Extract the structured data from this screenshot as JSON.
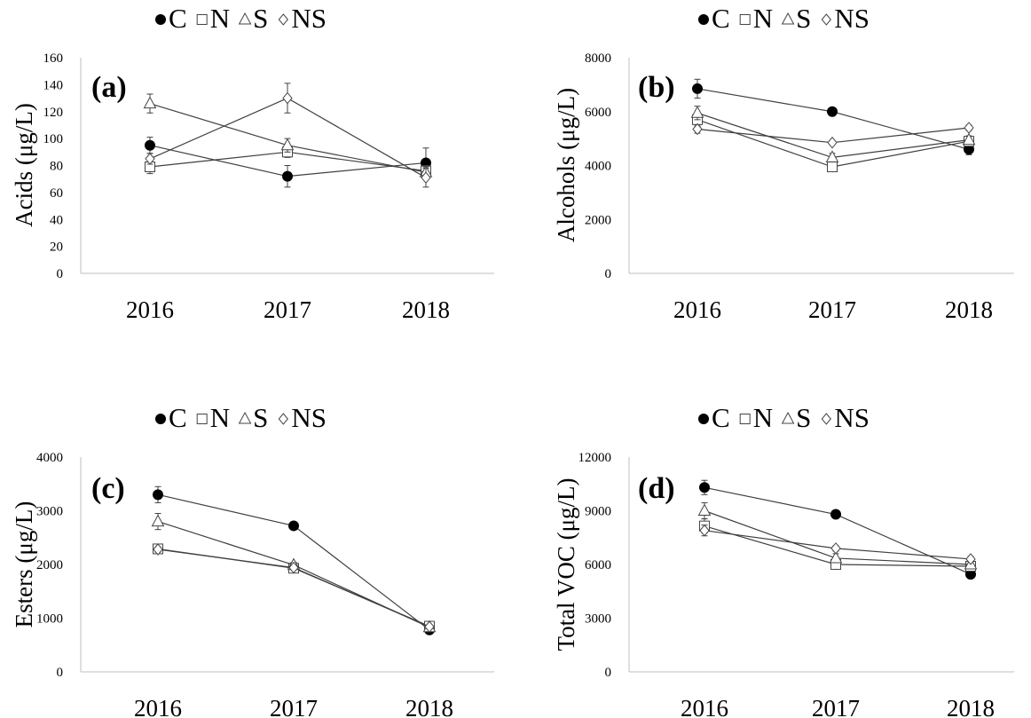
{
  "chart_data": [
    {
      "type": "line",
      "panel": "(a)",
      "ylabel": "Acids (μg/L)",
      "categories": [
        "2016",
        "2017",
        "2018"
      ],
      "ylim": [
        0,
        160
      ],
      "yticks": [
        0,
        20,
        40,
        60,
        80,
        100,
        120,
        140,
        160
      ],
      "series": [
        {
          "name": "C",
          "marker": "circle-filled",
          "values": [
            95,
            72,
            82
          ],
          "errors": [
            6,
            8,
            11
          ]
        },
        {
          "name": "N",
          "marker": "square-open",
          "values": [
            79,
            90,
            76
          ],
          "errors": [
            5,
            4,
            4
          ]
        },
        {
          "name": "S",
          "marker": "triangle-open",
          "values": [
            126,
            95,
            75
          ],
          "errors": [
            7,
            5,
            4
          ]
        },
        {
          "name": "NS",
          "marker": "diamond-open",
          "values": [
            85,
            130,
            71
          ],
          "errors": [
            4,
            11,
            7
          ]
        }
      ]
    },
    {
      "type": "line",
      "panel": "(b)",
      "ylabel": "Alcohols (μg/L)",
      "categories": [
        "2016",
        "2017",
        "2018"
      ],
      "ylim": [
        0,
        8000
      ],
      "yticks": [
        0,
        2000,
        4000,
        6000,
        8000
      ],
      "series": [
        {
          "name": "C",
          "marker": "circle-filled",
          "values": [
            6850,
            6000,
            4600
          ],
          "errors": [
            350,
            80,
            200
          ]
        },
        {
          "name": "N",
          "marker": "square-open",
          "values": [
            5700,
            3950,
            4900
          ],
          "errors": [
            250,
            120,
            150
          ]
        },
        {
          "name": "S",
          "marker": "triangle-open",
          "values": [
            5950,
            4300,
            4950
          ],
          "errors": [
            250,
            150,
            150
          ]
        },
        {
          "name": "NS",
          "marker": "diamond-open",
          "values": [
            5350,
            4850,
            5400
          ],
          "errors": [
            150,
            80,
            100
          ]
        }
      ]
    },
    {
      "type": "line",
      "panel": "(c)",
      "ylabel": "Esters (μg/L)",
      "categories": [
        "2016",
        "2017",
        "2018"
      ],
      "ylim": [
        0,
        4000
      ],
      "yticks": [
        0,
        1000,
        2000,
        3000,
        4000
      ],
      "series": [
        {
          "name": "C",
          "marker": "circle-filled",
          "values": [
            3300,
            2720,
            780
          ],
          "errors": [
            150,
            40,
            40
          ]
        },
        {
          "name": "N",
          "marker": "square-open",
          "values": [
            2290,
            1930,
            850
          ],
          "errors": [
            60,
            60,
            40
          ]
        },
        {
          "name": "S",
          "marker": "triangle-open",
          "values": [
            2800,
            1990,
            830
          ],
          "errors": [
            150,
            50,
            40
          ]
        },
        {
          "name": "NS",
          "marker": "diamond-open",
          "values": [
            2280,
            1940,
            840
          ],
          "errors": [
            50,
            40,
            40
          ]
        }
      ]
    },
    {
      "type": "line",
      "panel": "(d)",
      "ylabel": "Total VOC (μg/L)",
      "categories": [
        "2016",
        "2017",
        "2018"
      ],
      "ylim": [
        0,
        12000
      ],
      "yticks": [
        0,
        3000,
        6000,
        9000,
        12000
      ],
      "series": [
        {
          "name": "C",
          "marker": "circle-filled",
          "values": [
            10300,
            8800,
            5450
          ],
          "errors": [
            400,
            100,
            200
          ]
        },
        {
          "name": "N",
          "marker": "square-open",
          "values": [
            8150,
            6000,
            5900
          ],
          "errors": [
            400,
            200,
            150
          ]
        },
        {
          "name": "S",
          "marker": "triangle-open",
          "values": [
            9000,
            6350,
            6000
          ],
          "errors": [
            450,
            250,
            150
          ]
        },
        {
          "name": "NS",
          "marker": "diamond-open",
          "values": [
            7900,
            6900,
            6300
          ],
          "errors": [
            300,
            150,
            150
          ]
        }
      ]
    }
  ],
  "legend": {
    "entries": [
      {
        "label": "C",
        "marker": "circle-filled"
      },
      {
        "label": "N",
        "marker": "square-open"
      },
      {
        "label": "S",
        "marker": "triangle-open"
      },
      {
        "label": "NS",
        "marker": "diamond-open"
      }
    ]
  }
}
